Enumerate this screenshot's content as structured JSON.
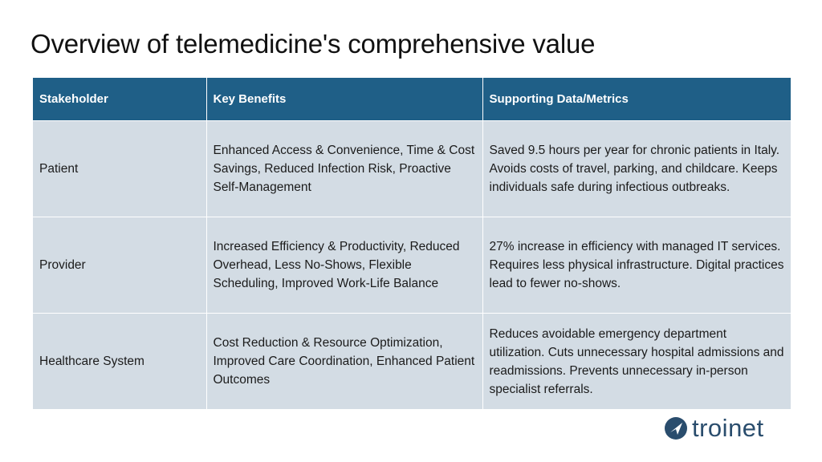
{
  "title": "Overview of telemedicine's comprehensive value",
  "table": {
    "headers": [
      "Stakeholder",
      "Key Benefits",
      "Supporting Data/Metrics"
    ],
    "rows": [
      {
        "stakeholder": "Patient",
        "benefits": "Enhanced Access & Convenience, Time & Cost Savings, Reduced Infection Risk, Proactive Self-Management",
        "metrics": "Saved 9.5 hours per year for chronic patients in Italy. Avoids costs of travel, parking, and childcare. Keeps individuals safe during infectious outbreaks."
      },
      {
        "stakeholder": "Provider",
        "benefits": "Increased Efficiency & Productivity, Reduced Overhead, Less No-Shows, Flexible Scheduling, Improved Work-Life Balance",
        "metrics": "27% increase in efficiency with managed IT services. Requires less physical infrastructure. Digital practices lead to fewer no-shows."
      },
      {
        "stakeholder": "Healthcare System",
        "benefits": "Cost Reduction & Resource Optimization, Improved Care Coordination, Enhanced Patient Outcomes",
        "metrics": "Reduces avoidable emergency department utilization. Cuts unnecessary hospital admissions and readmissions. Prevents unnecessary in-person specialist referrals."
      }
    ]
  },
  "logo": {
    "text": "troinet",
    "icon": "troinet-logo-icon",
    "color": "#2a4d6d"
  },
  "colors": {
    "header_bg": "#1f5f87",
    "cell_bg": "#d3dce4"
  }
}
